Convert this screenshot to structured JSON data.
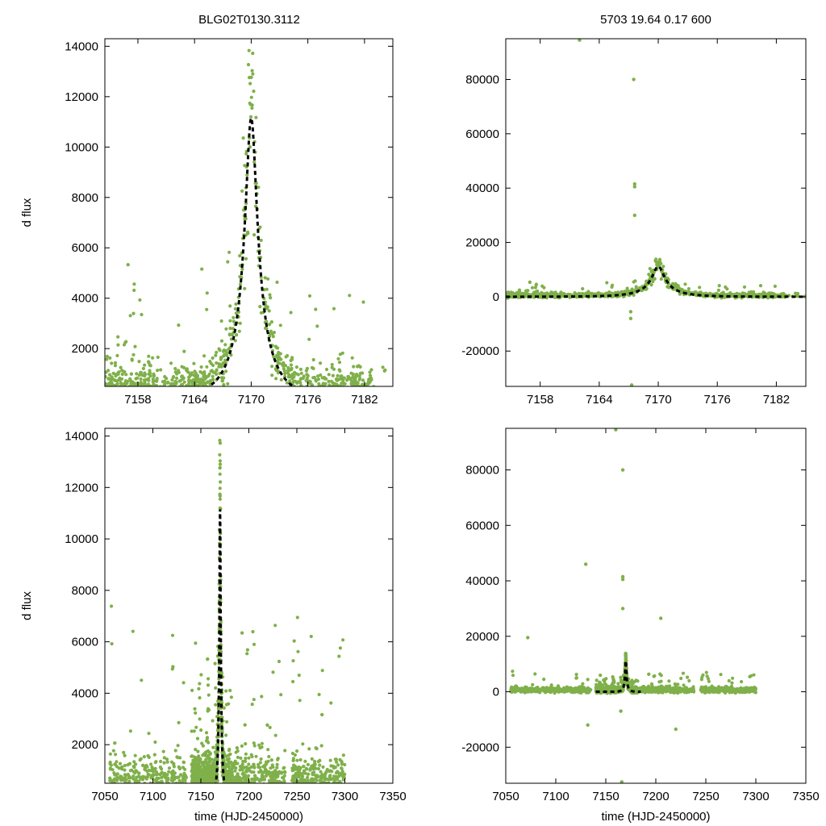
{
  "titles": {
    "left": "BLG02T0130.3112",
    "right": "5703  19.64  0.17  600"
  },
  "colors": {
    "points": "#7fb04a",
    "model": "#000000",
    "axes": "#000000"
  },
  "chart_data": [
    {
      "id": "top-left",
      "type": "scatter",
      "ylabel": "d flux",
      "xlabel": "",
      "xlim": [
        7154.5,
        7185
      ],
      "ylim": [
        500,
        14300
      ],
      "xticks": [
        7158,
        7164,
        7170,
        7176,
        7182
      ],
      "yticks": [
        2000,
        4000,
        6000,
        8000,
        10000,
        12000,
        14000
      ],
      "series": [
        {
          "name": "observations",
          "style": "points",
          "x_range": [
            7154.5,
            7183
          ],
          "points_density": "dense"
        },
        {
          "name": "model",
          "style": "dashed-line",
          "peak_x": 7170,
          "peak_y": 11150,
          "u0": 0.17,
          "tE": 3.7,
          "baseline": 0
        }
      ]
    },
    {
      "id": "top-right",
      "type": "scatter",
      "ylabel": "",
      "xlabel": "",
      "xlim": [
        7154.5,
        7185
      ],
      "ylim": [
        -33000,
        95000
      ],
      "xticks": [
        7158,
        7164,
        7170,
        7176,
        7182
      ],
      "yticks": [
        -20000,
        0,
        20000,
        40000,
        60000,
        80000
      ],
      "series": [
        {
          "name": "observations",
          "style": "points",
          "outliers": [
            [
              7162,
              94500
            ],
            [
              7167.5,
              80000
            ],
            [
              7167.6,
              41500
            ],
            [
              7167.6,
              40500
            ],
            [
              7167.6,
              30000
            ],
            [
              7167.2,
              -8000
            ],
            [
              7167.2,
              -5500
            ],
            [
              7167.3,
              -32500
            ]
          ]
        },
        {
          "name": "model",
          "style": "dashed-line",
          "peak_x": 7170,
          "peak_y": 11150
        }
      ]
    },
    {
      "id": "bottom-left",
      "type": "scatter",
      "ylabel": "d flux",
      "xlabel": "time (HJD-2450000)",
      "xlim": [
        7050,
        7350
      ],
      "ylim": [
        500,
        14300
      ],
      "xticks": [
        7050,
        7100,
        7150,
        7200,
        7250,
        7300,
        7350
      ],
      "yticks": [
        2000,
        4000,
        6000,
        8000,
        10000,
        12000,
        14000
      ],
      "series": [
        {
          "name": "observations",
          "style": "points",
          "x_range": [
            7055,
            7300
          ]
        },
        {
          "name": "model",
          "style": "dashed-line",
          "peak_x": 7170,
          "peak_y": 11150
        }
      ]
    },
    {
      "id": "bottom-right",
      "type": "scatter",
      "ylabel": "",
      "xlabel": "time (HJD-2450000)",
      "xlim": [
        7050,
        7350
      ],
      "ylim": [
        -33000,
        95000
      ],
      "xticks": [
        7050,
        7100,
        7150,
        7200,
        7250,
        7300,
        7350
      ],
      "yticks": [
        -20000,
        0,
        20000,
        40000,
        60000,
        80000
      ],
      "series": [
        {
          "name": "observations",
          "style": "points",
          "outliers": [
            [
              7072,
              19500
            ],
            [
              7130,
              46000
            ],
            [
              7132,
              -12000
            ],
            [
              7160,
              94500
            ],
            [
              7167,
              80000
            ],
            [
              7167,
              41500
            ],
            [
              7167,
              40500
            ],
            [
              7167,
              30000
            ],
            [
              7165,
              -7000
            ],
            [
              7166,
              -32500
            ],
            [
              7205,
              26500
            ],
            [
              7220,
              -13500
            ]
          ]
        },
        {
          "name": "model",
          "style": "dashed-line",
          "peak_x": 7170,
          "peak_y": 11150
        }
      ]
    }
  ]
}
